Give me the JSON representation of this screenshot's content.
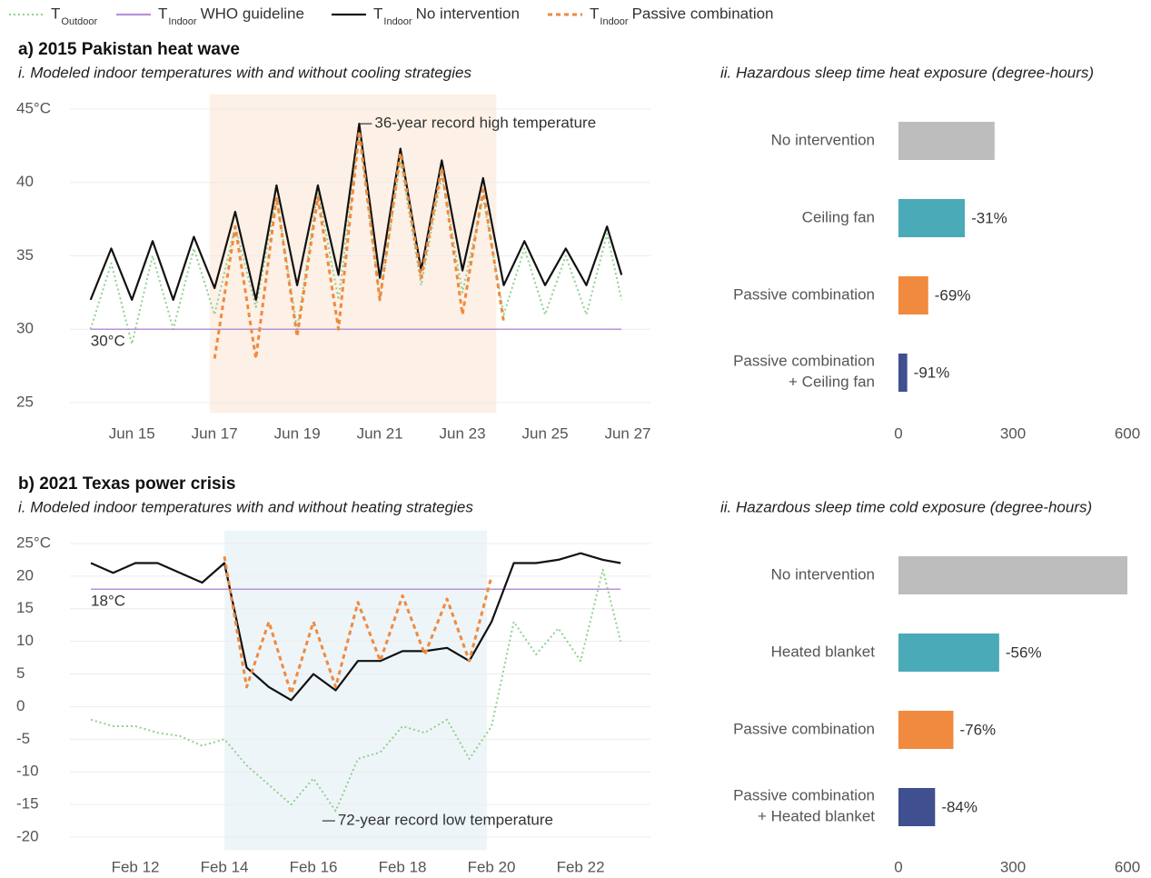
{
  "chart_data": [
    {
      "type": "line",
      "title": "a) 2015 Pakistan heat wave",
      "subtitle": "i. Modeled indoor temperatures with and without cooling strategies",
      "x": [
        14,
        14.5,
        15,
        15.5,
        16,
        16.5,
        17,
        17.5,
        18,
        18.5,
        19,
        19.5,
        20,
        20.5,
        21,
        21.5,
        22,
        22.5,
        23,
        23.5,
        24,
        24.5,
        25,
        25.5,
        26,
        26.5,
        26.85
      ],
      "xlim": [
        13.5,
        27.55
      ],
      "xticks": [
        {
          "value": 15,
          "label": "Jun 15"
        },
        {
          "value": 17,
          "label": "Jun 17"
        },
        {
          "value": 19,
          "label": "Jun 19"
        },
        {
          "value": 21,
          "label": "Jun 21"
        },
        {
          "value": 23,
          "label": "Jun 23"
        },
        {
          "value": 25,
          "label": "Jun 25"
        },
        {
          "value": 27,
          "label": "Jun 27"
        }
      ],
      "ylim": [
        24.3,
        46
      ],
      "yticks": [
        25,
        30,
        35,
        40,
        {
          "value": 45,
          "label": "45°C"
        }
      ],
      "grid": true,
      "shaded_range": [
        16.88,
        23.82
      ],
      "shade_color": "#fdf0e6",
      "annotation": {
        "text": "36-year record high temperature",
        "x": 20.5,
        "y": 44
      },
      "series": [
        {
          "name": "T",
          "subscript": "Outdoor",
          "color": "#8fd18f",
          "line_style": "dotted",
          "values": [
            30,
            34.5,
            29,
            35,
            30,
            35.5,
            31,
            37,
            31.5,
            39,
            30,
            39.5,
            32,
            43.5,
            32,
            41.5,
            33,
            40.5,
            32.5,
            39,
            31,
            35.5,
            31,
            35,
            31,
            36.5,
            32
          ]
        },
        {
          "name": "T",
          "subscript": "Indoor",
          "description": "WHO guideline",
          "color": "#b792d8",
          "line_style": "solid",
          "value": 30,
          "value_label": "30°C"
        },
        {
          "name": "T",
          "subscript": "Indoor",
          "description": "No intervention",
          "color": "#111111",
          "line_style": "solid",
          "values": [
            32,
            35.5,
            32,
            36,
            32,
            36.3,
            32.8,
            38,
            32,
            39.8,
            33,
            39.8,
            33.7,
            44,
            33.5,
            42.3,
            34,
            41.5,
            34,
            40.3,
            33,
            36,
            33,
            35.5,
            33,
            37,
            33.7
          ]
        },
        {
          "name": "T",
          "subscript": "Indoor",
          "description": "Passive combination",
          "color": "#f08a3e",
          "line_style": "dashed",
          "values": [
            null,
            null,
            null,
            null,
            null,
            null,
            28,
            37,
            28,
            39,
            29.5,
            39,
            30,
            43.5,
            32,
            42,
            33.5,
            41,
            31,
            39.5,
            30.5,
            null,
            null,
            null,
            null,
            null,
            null
          ]
        }
      ]
    },
    {
      "type": "barh",
      "subtitle": "ii. Hazardous sleep time heat exposure (degree-hours)",
      "categories": [
        "No intervention",
        "Ceiling fan",
        "Passive combination",
        [
          "Passive combination",
          "+ Ceiling fan"
        ]
      ],
      "values": [
        252,
        174,
        78,
        23
      ],
      "colors": [
        "#bdbdbd",
        "#4baab8",
        "#f08a3e",
        "#3f4f8f"
      ],
      "percent_change": [
        null,
        -31,
        -69,
        -91
      ],
      "percent_change_labels": [
        null,
        "-31%",
        "-69%",
        "-91%"
      ],
      "xlim": [
        0,
        600
      ],
      "xticks": [
        0,
        300,
        600
      ]
    },
    {
      "type": "line",
      "title": "b) 2021 Texas power crisis",
      "subtitle": "i. Modeled indoor temperatures with and without heating strategies",
      "x": [
        11,
        11.5,
        12,
        12.5,
        13,
        13.5,
        14,
        14.5,
        15,
        15.5,
        16,
        16.5,
        17,
        17.5,
        18,
        18.5,
        19,
        19.5,
        20,
        20.5,
        21,
        21.5,
        22,
        22.5,
        22.9
      ],
      "xlim": [
        10.53,
        23.57
      ],
      "xticks": [
        {
          "value": 12,
          "label": "Feb 12"
        },
        {
          "value": 14,
          "label": "Feb 14"
        },
        {
          "value": 16,
          "label": "Feb 16"
        },
        {
          "value": 18,
          "label": "Feb 18"
        },
        {
          "value": 20,
          "label": "Feb 20"
        },
        {
          "value": 22,
          "label": "Feb 22"
        }
      ],
      "ylim": [
        -22,
        27
      ],
      "yticks": [
        -20,
        -15,
        -10,
        -5,
        0,
        5,
        10,
        15,
        20,
        {
          "value": 25,
          "label": "25°C"
        }
      ],
      "grid": true,
      "shaded_range": [
        14.0,
        19.9
      ],
      "shade_color": "#eef5f8",
      "annotation": {
        "text": "72-year record low temperature",
        "x": 16.2,
        "y": -17.5
      },
      "series": [
        {
          "name": "T",
          "subscript": "Outdoor",
          "color": "#8fd18f",
          "line_style": "dotted",
          "values": [
            -2,
            -3,
            -3,
            -4,
            -4.5,
            -6,
            -5,
            -9,
            -12,
            -15,
            -11,
            -16,
            -8,
            -7,
            -3,
            -4,
            -2,
            -8,
            -3,
            13,
            8,
            12,
            7,
            21,
            10
          ]
        },
        {
          "name": "T",
          "subscript": "Indoor",
          "description": "WHO guideline",
          "color": "#b792d8",
          "line_style": "solid",
          "value": 18,
          "value_label": "18°C"
        },
        {
          "name": "T",
          "subscript": "Indoor",
          "description": "No intervention",
          "color": "#111111",
          "line_style": "solid",
          "values": [
            22,
            20.5,
            22,
            22,
            20.5,
            19,
            22,
            6,
            3,
            1,
            5,
            2.5,
            7,
            7,
            8.5,
            8.5,
            9,
            7,
            13,
            22,
            22,
            22.5,
            23.5,
            22.5,
            22
          ]
        },
        {
          "name": "T",
          "subscript": "Indoor",
          "description": "Passive combination",
          "color": "#f08a3e",
          "line_style": "dashed",
          "values": [
            null,
            null,
            null,
            null,
            null,
            null,
            23,
            3,
            13,
            2,
            13,
            3,
            16,
            7,
            17,
            8,
            16.5,
            7,
            20,
            null,
            null,
            null,
            null,
            null,
            null
          ]
        }
      ]
    },
    {
      "type": "barh",
      "subtitle": "ii. Hazardous sleep time cold exposure (degree-hours)",
      "categories": [
        "No intervention",
        "Heated blanket",
        "Passive combination",
        [
          "Passive combination",
          "+ Heated blanket"
        ]
      ],
      "values": [
        600,
        264,
        144,
        96
      ],
      "colors": [
        "#bdbdbd",
        "#4baab8",
        "#f08a3e",
        "#3f4f8f"
      ],
      "percent_change": [
        null,
        -56,
        -76,
        -84
      ],
      "percent_change_labels": [
        null,
        "-56%",
        "-76%",
        "-84%"
      ],
      "xlim": [
        0,
        600
      ],
      "xticks": [
        0,
        300,
        600
      ]
    }
  ]
}
